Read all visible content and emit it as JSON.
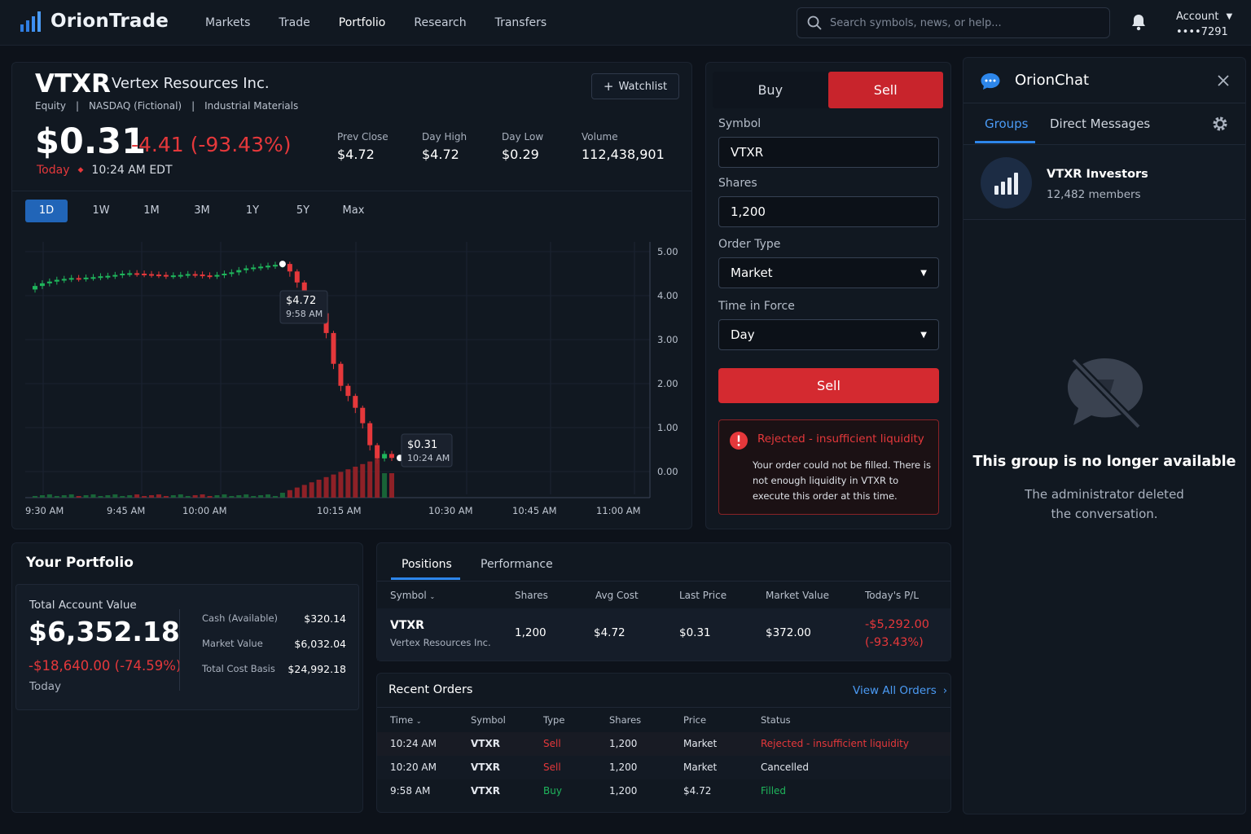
{
  "app": {
    "name": "OrionTrade"
  },
  "nav": [
    "Markets",
    "Trade",
    "Portfolio",
    "Research",
    "Transfers"
  ],
  "search": {
    "placeholder": "Search symbols, news, or help..."
  },
  "account": {
    "label": "Account",
    "number": "••••7291"
  },
  "ticker": {
    "symbol": "VTXR",
    "company": "Vertex Resources Inc.",
    "type": "Equity",
    "exchange": "NASDAQ (Fictional)",
    "sector": "Industrial Materials",
    "price": "$0.31",
    "change": "-4.41 (-93.43%)",
    "today": "Today",
    "time": "10:24 AM EDT",
    "watchlist": "Watchlist",
    "stats": [
      {
        "label": "Prev Close",
        "value": "$4.72"
      },
      {
        "label": "Day High",
        "value": "$4.72"
      },
      {
        "label": "Day Low",
        "value": "$0.29"
      },
      {
        "label": "Volume",
        "value": "112,438,901"
      }
    ],
    "ranges": [
      "1D",
      "1W",
      "1M",
      "3M",
      "1Y",
      "5Y",
      "Max"
    ]
  },
  "chart_data": {
    "type": "candlestick",
    "y_ticks": [
      "5.00",
      "4.00",
      "3.00",
      "2.00",
      "1.00",
      "0.00"
    ],
    "x_ticks": [
      "9:30 AM",
      "9:45 AM",
      "10:00 AM",
      "10:15 AM",
      "10:30 AM",
      "10:45 AM",
      "11:00 AM"
    ],
    "ylim": [
      0,
      5.4
    ],
    "high_callout": {
      "price": "$4.72",
      "time": "9:58 AM",
      "value": 4.72
    },
    "last_callout": {
      "price": "$0.31",
      "time": "10:24 AM",
      "value": 0.31
    },
    "candles_approx_close": [
      4.22,
      4.28,
      4.32,
      4.36,
      4.38,
      4.4,
      4.39,
      4.41,
      4.42,
      4.44,
      4.45,
      4.47,
      4.5,
      4.51,
      4.5,
      4.49,
      4.48,
      4.47,
      4.45,
      4.46,
      4.47,
      4.49,
      4.48,
      4.46,
      4.45,
      4.47,
      4.5,
      4.53,
      4.58,
      4.62,
      4.64,
      4.66,
      4.68,
      4.7,
      4.72,
      4.55,
      4.3,
      4.05,
      3.9,
      3.6,
      3.15,
      2.45,
      1.95,
      1.72,
      1.45,
      1.1,
      0.6,
      0.3,
      0.4,
      0.31
    ],
    "up_colors": {
      "up": "#1fb65c",
      "down": "#e5383b"
    }
  },
  "order": {
    "buy": "Buy",
    "sell": "Sell",
    "symbol_label": "Symbol",
    "symbol": "VTXR",
    "shares_label": "Shares",
    "shares": "1,200",
    "type_label": "Order Type",
    "type": "Market",
    "tif_label": "Time in Force",
    "tif": "Day",
    "submit": "Sell",
    "error_title": "Rejected - insufficient liquidity",
    "error_text": "Your order could not be filled. There is not enough liquidity in VTXR to execute this order at this time."
  },
  "chat": {
    "title": "OrionChat",
    "tabs": [
      "Groups",
      "Direct Messages"
    ],
    "group_name": "VTXR Investors",
    "members": "12,482 members",
    "empty_title": "This group is no longer available",
    "empty_text_1": "The administrator deleted",
    "empty_text_2": "the conversation."
  },
  "portfolio": {
    "title": "Your Portfolio",
    "total_label": "Total Account Value",
    "total": "$6,352.18",
    "change": "-$18,640.00 (-74.59%)",
    "today": "Today",
    "rows": [
      {
        "label": "Cash (Available)",
        "value": "$320.14"
      },
      {
        "label": "Market Value",
        "value": "$6,032.04"
      },
      {
        "label": "Total Cost Basis",
        "value": "$24,992.18"
      }
    ]
  },
  "positions": {
    "tabs": [
      "Positions",
      "Performance"
    ],
    "headers": [
      "Symbol",
      "Shares",
      "Avg Cost",
      "Last Price",
      "Market Value",
      "Today's P/L"
    ],
    "row": {
      "symbol": "VTXR",
      "company": "Vertex Resources Inc.",
      "shares": "1,200",
      "avg": "$4.72",
      "last": "$0.31",
      "mv": "$372.00",
      "pl": "-$5,292.00",
      "plpct": "(-93.43%)"
    }
  },
  "orders": {
    "title": "Recent Orders",
    "view_all": "View All Orders",
    "headers": [
      "Time",
      "Symbol",
      "Type",
      "Shares",
      "Price",
      "Status"
    ],
    "rows": [
      {
        "time": "10:24 AM",
        "symbol": "VTXR",
        "type": "Sell",
        "shares": "1,200",
        "price": "Market",
        "status": "Rejected - insufficient liquidity"
      },
      {
        "time": "10:20 AM",
        "symbol": "VTXR",
        "type": "Sell",
        "shares": "1,200",
        "price": "Market",
        "status": "Cancelled"
      },
      {
        "time": "9:58 AM",
        "symbol": "VTXR",
        "type": "Buy",
        "shares": "1,200",
        "price": "$4.72",
        "status": "Filled"
      }
    ]
  }
}
